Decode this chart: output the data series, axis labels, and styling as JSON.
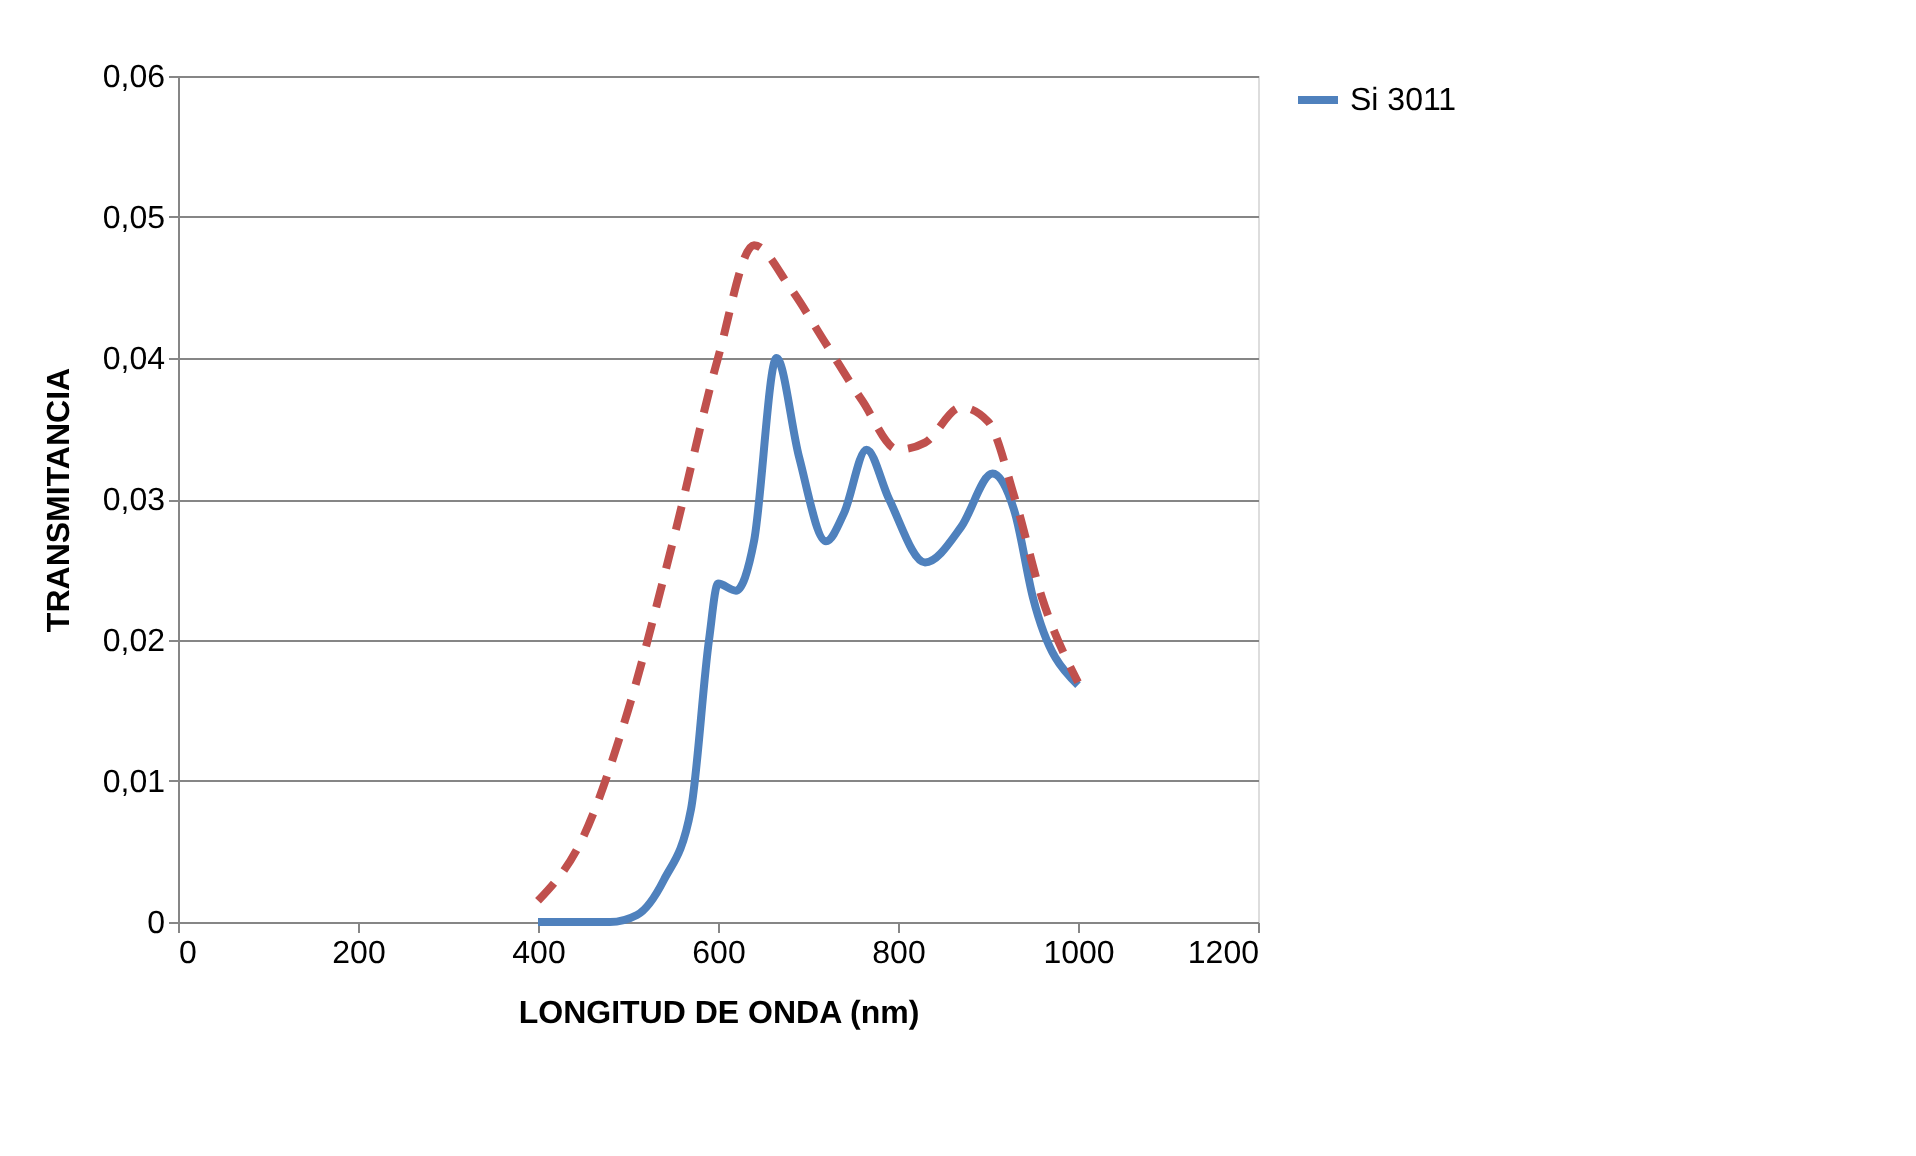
{
  "chart_data": {
    "type": "line",
    "xlabel": "LONGITUD DE ONDA (nm)",
    "ylabel": "TRANSMITANCIA",
    "xlim": [
      0,
      1200
    ],
    "xticks": [
      0,
      200,
      400,
      600,
      800,
      1000,
      1200
    ],
    "ylim": [
      0,
      0.06
    ],
    "yticks": [
      {
        "value": 0,
        "label": "0"
      },
      {
        "value": 0.01,
        "label": "0,01"
      },
      {
        "value": 0.02,
        "label": "0,02"
      },
      {
        "value": 0.03,
        "label": "0,03"
      },
      {
        "value": 0.04,
        "label": "0,04"
      },
      {
        "value": 0.05,
        "label": "0,05"
      },
      {
        "value": 0.06,
        "label": "0,06"
      }
    ],
    "grid": "y",
    "legend": "right",
    "marker": "none",
    "series": [
      {
        "name": "Si 3011",
        "color": "#4f81bd",
        "line_style": "solid",
        "x": [
          400,
          440,
          480,
          510,
          540,
          570,
          590,
          600,
          620,
          640,
          665,
          690,
          720,
          740,
          765,
          790,
          830,
          870,
          905,
          930,
          950,
          1000
        ],
        "values": [
          0,
          0,
          0,
          0.0005,
          0.003,
          0.008,
          0.02,
          0.024,
          0.0235,
          0.027,
          0.04,
          0.033,
          0.027,
          0.029,
          0.0335,
          0.03,
          0.0255,
          0.028,
          0.0318,
          0.029,
          0.023,
          0.0168
        ]
      },
      {
        "color": "#c0504d",
        "line_style": "dashed",
        "x": [
          400,
          450,
          500,
          550,
          600,
          640,
          680,
          720,
          760,
          800,
          830,
          870,
          900,
          930,
          960,
          1000
        ],
        "values": [
          0.0015,
          0.006,
          0.015,
          0.027,
          0.04,
          0.048,
          0.045,
          0.041,
          0.037,
          0.0335,
          0.034,
          0.0365,
          0.0355,
          0.03,
          0.023,
          0.017
        ]
      }
    ]
  }
}
